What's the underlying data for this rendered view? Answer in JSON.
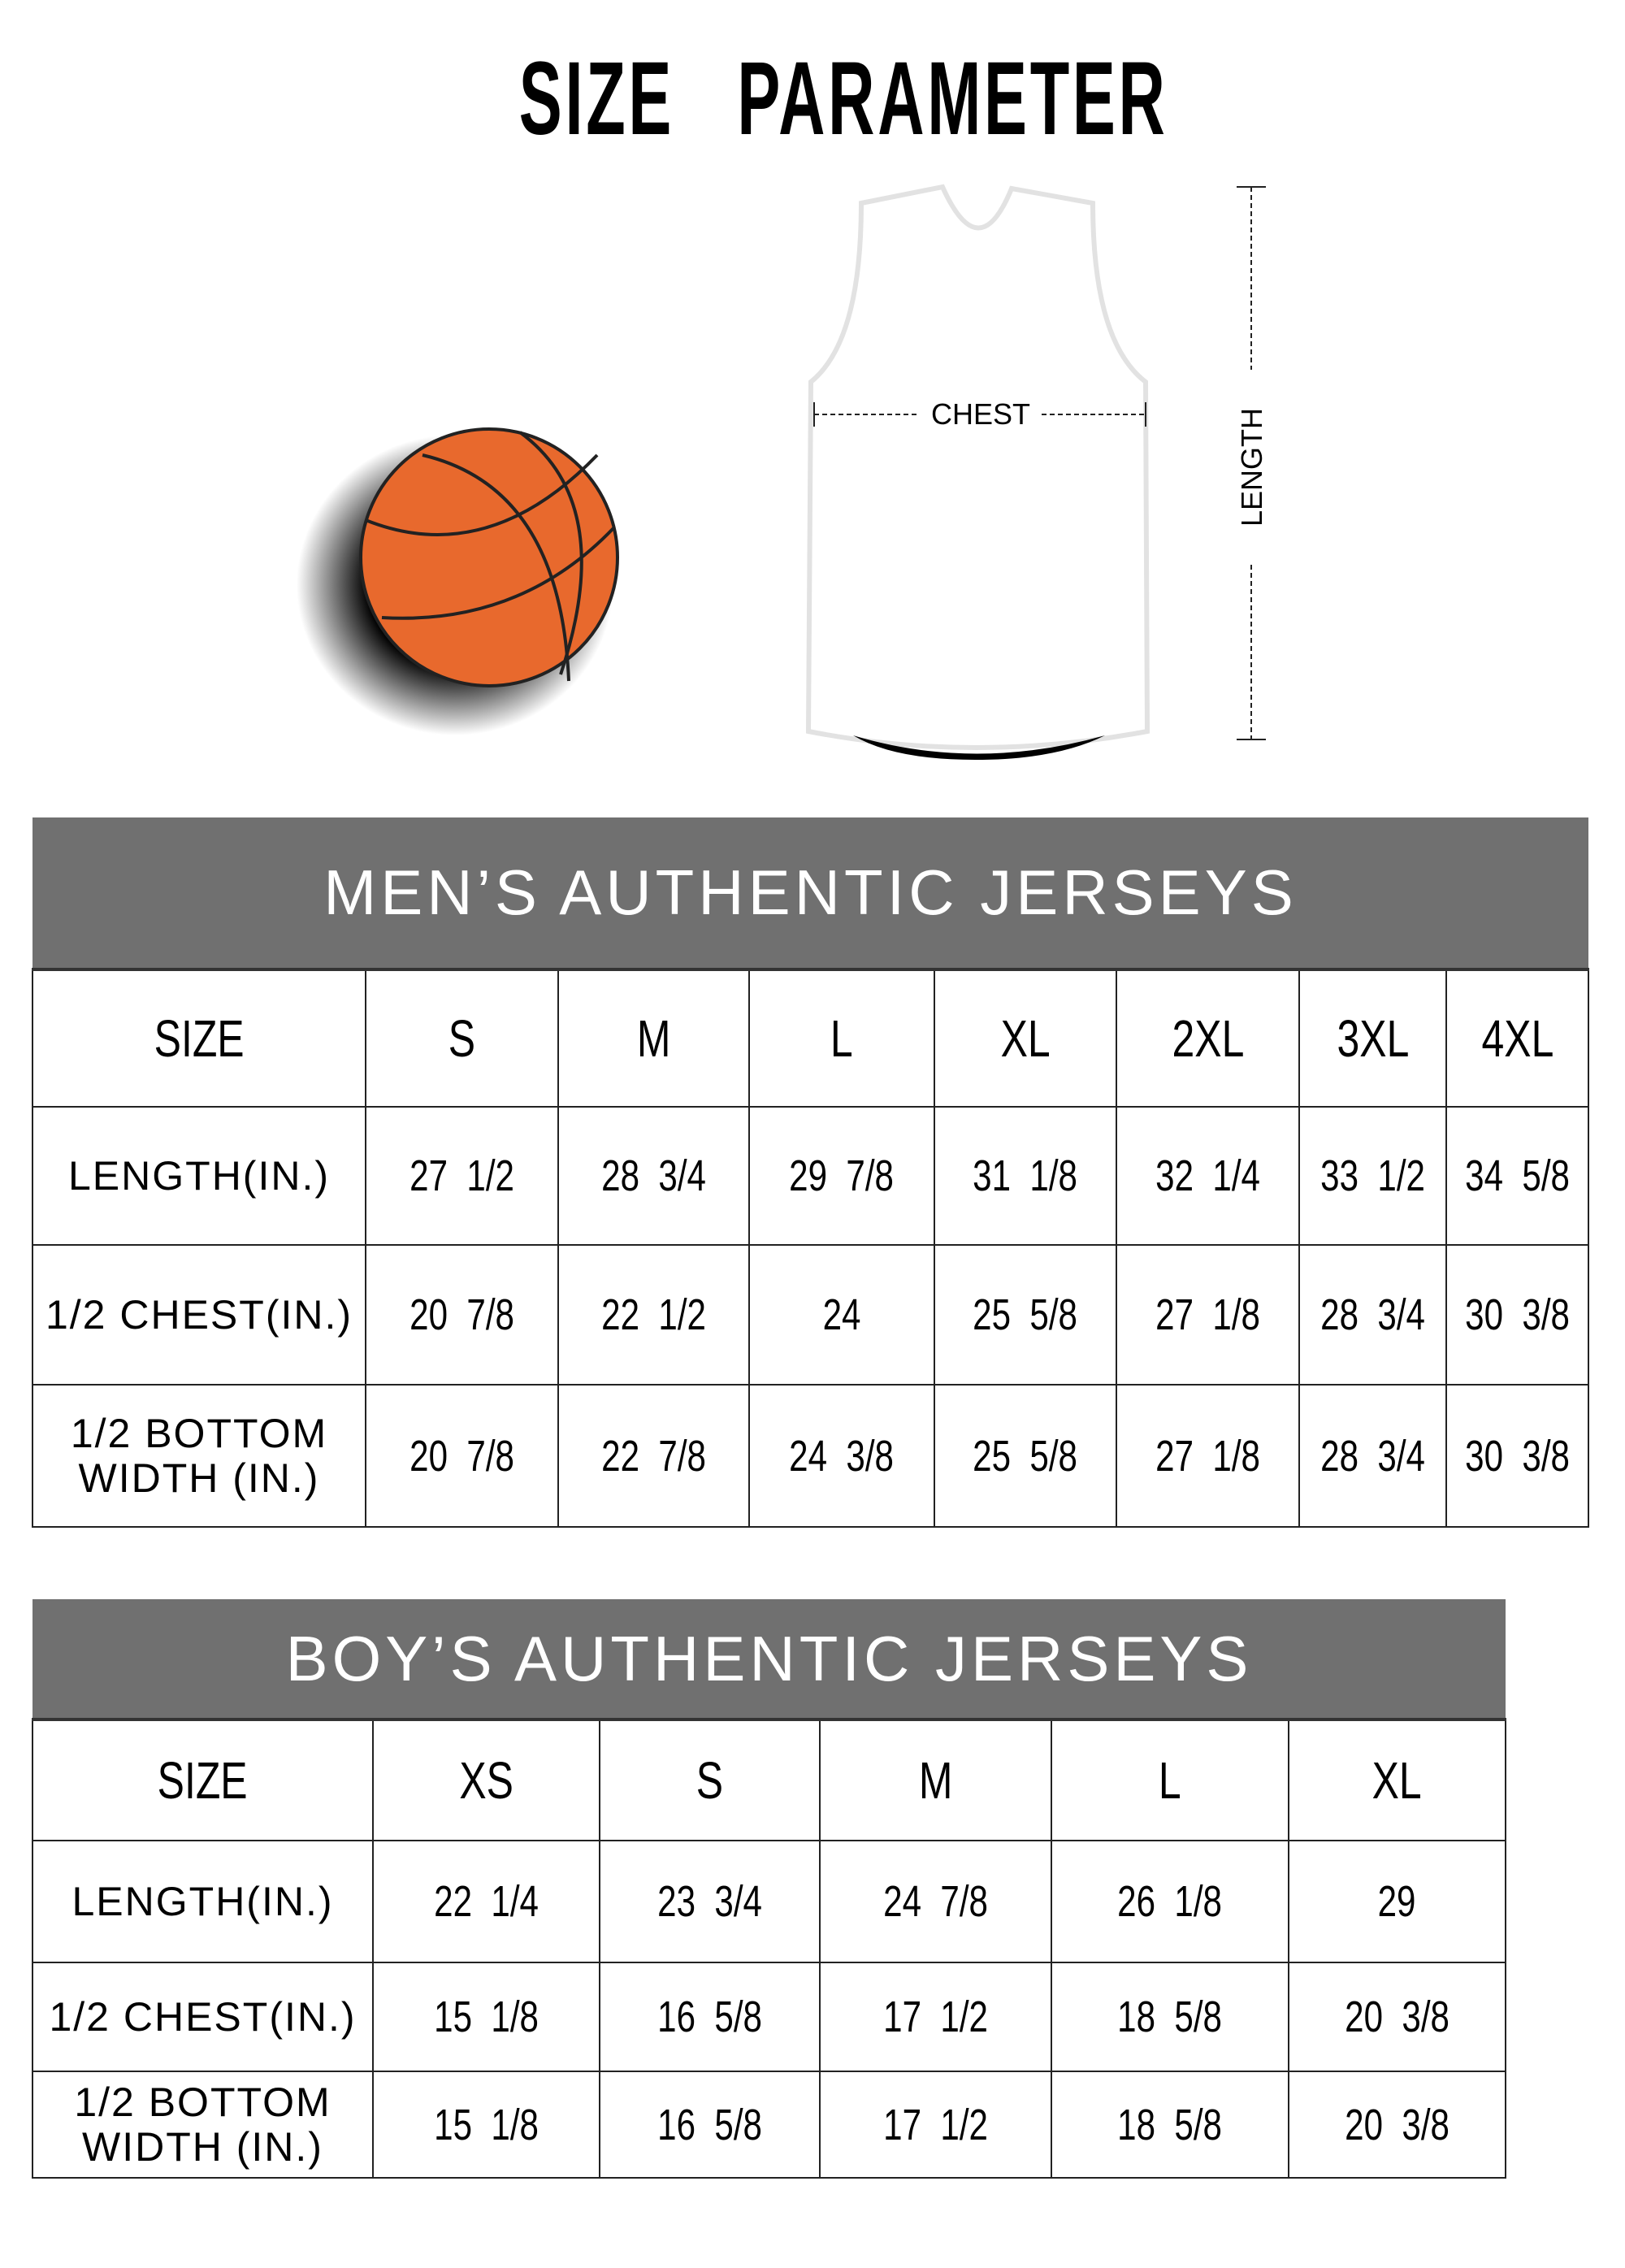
{
  "title": "SIZE   PARAMETER",
  "diagram": {
    "chest_label": "CHEST",
    "length_label": "LENGTH",
    "ball_color": "#E8692D"
  },
  "men": {
    "title": "MEN’S AUTHENTIC JERSEYS",
    "size_label": "SIZE",
    "sizes": [
      "S",
      "M",
      "L",
      "XL",
      "2XL",
      "3XL",
      "4XL"
    ],
    "rows": [
      {
        "label": "LENGTH(IN.)",
        "values": [
          "27  1/2",
          "28  3/4",
          "29  7/8",
          "31  1/8",
          "32  1/4",
          "33  1/2",
          "34  5/8"
        ]
      },
      {
        "label": "1/2 CHEST(IN.)",
        "values": [
          "20  7/8",
          "22  1/2",
          "24",
          "25  5/8",
          "27  1/8",
          "28  3/4",
          "30  3/8"
        ]
      },
      {
        "label": "1/2 BOTTOM WIDTH  (IN.)",
        "values": [
          "20  7/8",
          "22  7/8",
          "24  3/8",
          "25  5/8",
          "27  1/8",
          "28  3/4",
          "30  3/8"
        ]
      }
    ]
  },
  "boys": {
    "title": "BOY’S AUTHENTIC JERSEYS",
    "size_label": "SIZE",
    "sizes": [
      "XS",
      "S",
      "M",
      "L",
      "XL"
    ],
    "rows": [
      {
        "label": "LENGTH(IN.)",
        "values": [
          "22  1/4",
          "23  3/4",
          "24  7/8",
          "26  1/8",
          "29"
        ]
      },
      {
        "label": "1/2 CHEST(IN.)",
        "values": [
          "15  1/8",
          "16  5/8",
          "17  1/2",
          "18  5/8",
          "20  3/8"
        ]
      },
      {
        "label": "1/2 BOTTOM WIDTH  (IN.)",
        "values": [
          "15  1/8",
          "16  5/8",
          "17  1/2",
          "18  5/8",
          "20  3/8"
        ]
      }
    ]
  },
  "header_color": "#707070"
}
